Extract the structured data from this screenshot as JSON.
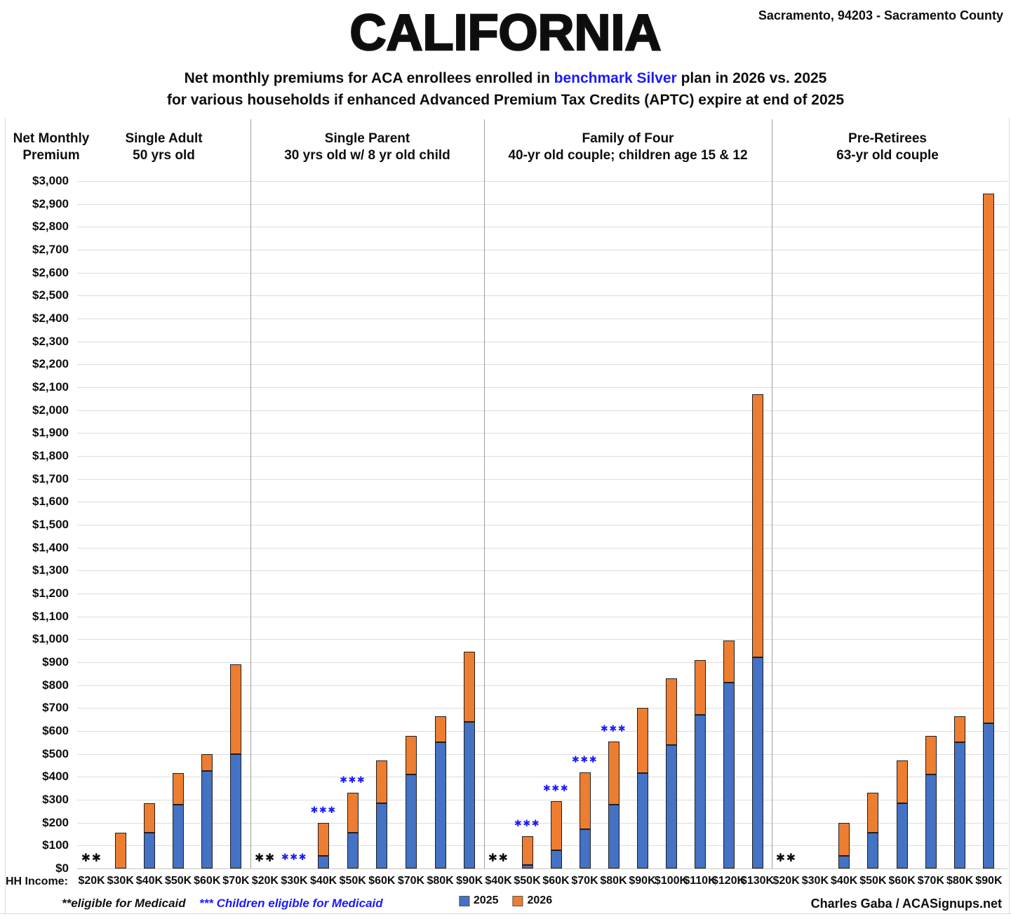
{
  "header": {
    "title": "CALIFORNIA",
    "location": "Sacramento, 94203 - Sacramento County",
    "subtitle_line1_prefix": "Net monthly premiums for ACA enrollees enrolled in ",
    "subtitle_line1_highlight": "benchmark Silver",
    "subtitle_line1_suffix": " plan in 2026 vs. 2025",
    "subtitle_line2": "for various households if enhanced Advanced Premium Tax Credits (APTC) expire at end of 2025"
  },
  "axis": {
    "y_title_line1": "Net Monthly",
    "y_title_line2": "Premium",
    "hh_income_label": "HH Income:"
  },
  "legend": [
    {
      "label": "2025",
      "color": "#4472C4"
    },
    {
      "label": "2026",
      "color": "#ED7D31"
    }
  ],
  "footnotes": {
    "medicaid": "**eligible for Medicaid",
    "children_medicaid": "*** Children eligible for Medicaid",
    "credit": "Charles Gaba / ACASignups.net"
  },
  "colors": {
    "bar_2025": "#4472C4",
    "bar_2026": "#ED7D31",
    "bar_border": "#1f1f1f",
    "highlight_blue": "#1a1aff",
    "grid": "#dcdcdc",
    "divider": "#9e9e9e"
  },
  "chart_data": {
    "type": "bar",
    "stacked": true,
    "title": "Net monthly premiums for ACA enrollees enrolled in benchmark Silver plan in 2026 vs. 2025 for various households if enhanced Advanced Premium Tax Credits (APTC) expire at end of 2025",
    "location": "Sacramento, 94203 - Sacramento County",
    "ylabel": "Net Monthly Premium",
    "xlabel": "HH Income",
    "ylim": [
      0,
      3000
    ],
    "ytick_step": 100,
    "grid": true,
    "legend_position": "bottom",
    "series_names": [
      "2025",
      "2026"
    ],
    "note_meanings": {
      "**": "eligible for Medicaid",
      "***": "Children eligible for Medicaid"
    },
    "groups": [
      {
        "title": "Single Adult",
        "subtitle": "50 yrs old",
        "bars": [
          {
            "income": "$20K",
            "note": "**",
            "premium_2025": null,
            "premium_2026": null
          },
          {
            "income": "$30K",
            "note": null,
            "premium_2025": 0,
            "premium_2026": 155
          },
          {
            "income": "$40K",
            "note": null,
            "premium_2025": 155,
            "premium_2026": 285
          },
          {
            "income": "$50K",
            "note": null,
            "premium_2025": 280,
            "premium_2026": 415
          },
          {
            "income": "$60K",
            "note": null,
            "premium_2025": 425,
            "premium_2026": 500
          },
          {
            "income": "$70K",
            "note": null,
            "premium_2025": 500,
            "premium_2026": 890
          }
        ]
      },
      {
        "title": "Single Parent",
        "subtitle": "30 yrs old w/ 8 yr old child",
        "bars": [
          {
            "income": "$20K",
            "note": "**",
            "premium_2025": null,
            "premium_2026": null
          },
          {
            "income": "$30K",
            "note": "***",
            "premium_2025": null,
            "premium_2026": null
          },
          {
            "income": "$40K",
            "note": "***",
            "premium_2025": 55,
            "premium_2026": 200
          },
          {
            "income": "$50K",
            "note": "***",
            "premium_2025": 155,
            "premium_2026": 330
          },
          {
            "income": "$60K",
            "note": null,
            "premium_2025": 285,
            "premium_2026": 470
          },
          {
            "income": "$70K",
            "note": null,
            "premium_2025": 410,
            "premium_2026": 580
          },
          {
            "income": "$80K",
            "note": null,
            "premium_2025": 550,
            "premium_2026": 665
          },
          {
            "income": "$90K",
            "note": null,
            "premium_2025": 640,
            "premium_2026": 945
          }
        ]
      },
      {
        "title": "Family of Four",
        "subtitle": "40-yr old couple; children age 15 & 12",
        "bars": [
          {
            "income": "$40K",
            "note": "**",
            "premium_2025": null,
            "premium_2026": null
          },
          {
            "income": "$50K",
            "note": "***",
            "premium_2025": 15,
            "premium_2026": 140
          },
          {
            "income": "$60K",
            "note": "***",
            "premium_2025": 80,
            "premium_2026": 295
          },
          {
            "income": "$70K",
            "note": "***",
            "premium_2025": 170,
            "premium_2026": 420
          },
          {
            "income": "$80K",
            "note": "***",
            "premium_2025": 280,
            "premium_2026": 555
          },
          {
            "income": "$90K",
            "note": null,
            "premium_2025": 415,
            "premium_2026": 700
          },
          {
            "income": "$100K",
            "note": null,
            "premium_2025": 540,
            "premium_2026": 830
          },
          {
            "income": "$110K",
            "note": null,
            "premium_2025": 670,
            "premium_2026": 910
          },
          {
            "income": "$120K",
            "note": null,
            "premium_2025": 810,
            "premium_2026": 995
          },
          {
            "income": "$130K",
            "note": null,
            "premium_2025": 920,
            "premium_2026": 2070
          }
        ]
      },
      {
        "title": "Pre-Retirees",
        "subtitle": "63-yr old couple",
        "bars": [
          {
            "income": "$20K",
            "note": "**",
            "premium_2025": null,
            "premium_2026": null
          },
          {
            "income": "$30K",
            "note": null,
            "premium_2025": 0,
            "premium_2026": 0
          },
          {
            "income": "$40K",
            "note": null,
            "premium_2025": 55,
            "premium_2026": 200
          },
          {
            "income": "$50K",
            "note": null,
            "premium_2025": 155,
            "premium_2026": 330
          },
          {
            "income": "$60K",
            "note": null,
            "premium_2025": 285,
            "premium_2026": 470
          },
          {
            "income": "$70K",
            "note": null,
            "premium_2025": 410,
            "premium_2026": 580
          },
          {
            "income": "$80K",
            "note": null,
            "premium_2025": 550,
            "premium_2026": 665
          },
          {
            "income": "$90K",
            "note": null,
            "premium_2025": 635,
            "premium_2026": 2945
          }
        ]
      }
    ]
  }
}
